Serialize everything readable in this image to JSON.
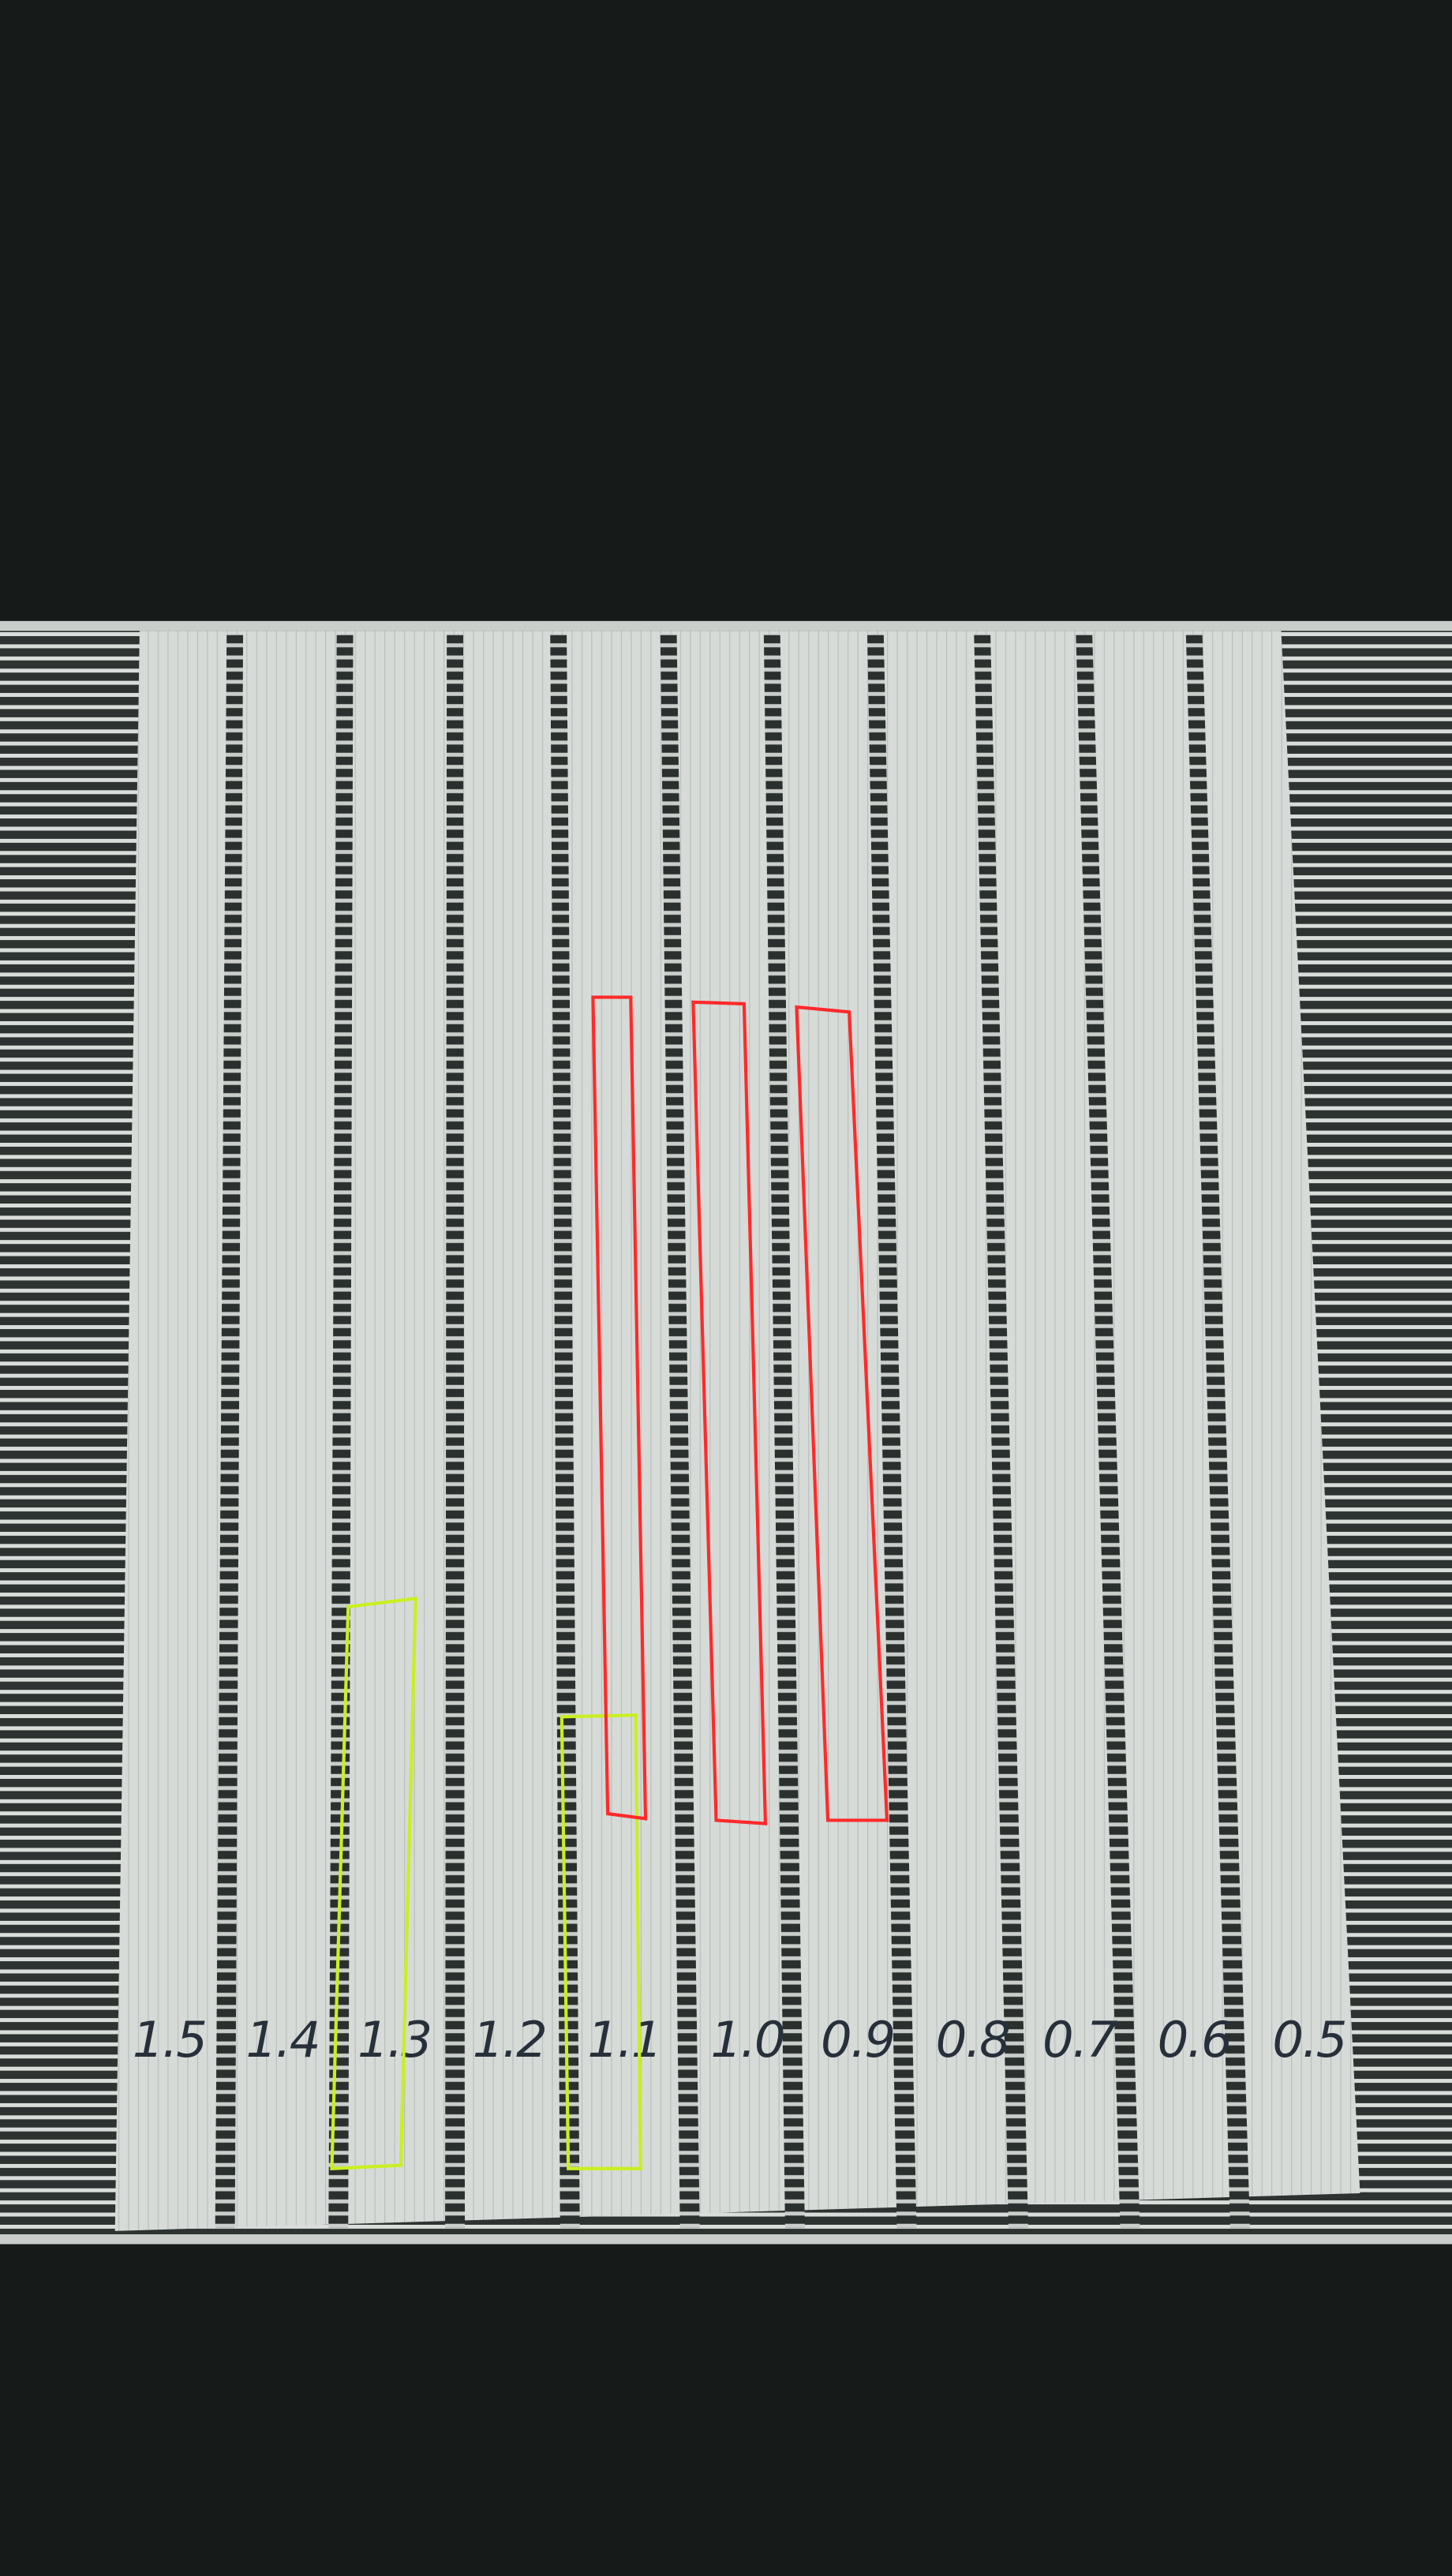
{
  "photo": {
    "subject": "3D printed calibration test plate with handwritten labels",
    "labels": [
      "1.5",
      "1.4",
      "1.3",
      "1.2",
      "1.1",
      "1.0",
      "0.9",
      "0.8",
      "0.7",
      "0.6",
      "0.5"
    ],
    "annotation_colors": {
      "highlight_red": "#ff2a2a",
      "highlight_yellow": "#c8f020"
    },
    "background_color": "#161a18",
    "plate_color": "#d6dbd8"
  }
}
